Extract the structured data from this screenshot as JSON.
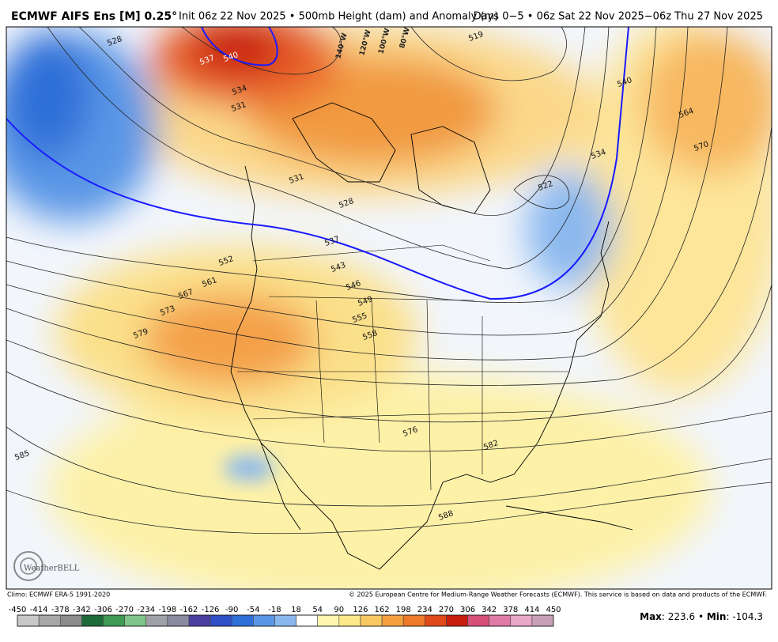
{
  "header": {
    "model": "ECMWF AIFS Ens [M] 0.25°",
    "init": "Init 06z 22 Nov 2025 • 500mb Height (dam) and Anomaly (m)",
    "range": "Days 0−5 • 06z Sat 22 Nov 2025−06z Thu 27 Nov 2025"
  },
  "map": {
    "contour_labels": [
      "528",
      "537",
      "540",
      "534",
      "531",
      "519",
      "540",
      "564",
      "570",
      "534",
      "522",
      "531",
      "528",
      "537",
      "543",
      "546",
      "549",
      "552",
      "555",
      "558",
      "561",
      "567",
      "573",
      "579",
      "576",
      "582",
      "585",
      "588"
    ],
    "longitude_labels": [
      "140°W",
      "120°W",
      "100°W",
      "80°W"
    ],
    "logo": "WeatherBELL"
  },
  "footer": {
    "climo": "Climo: ECMWF ERA-5 1991-2020",
    "copyright": "© 2025 European Centre for Medium-Range Weather Forecasts (ECMWF). This service is based on data and products of the ECMWF."
  },
  "colorbar": {
    "ticks": [
      -450,
      -414,
      -378,
      -342,
      -306,
      -270,
      -234,
      -198,
      -162,
      -126,
      -90,
      -54,
      -18,
      18,
      54,
      90,
      126,
      162,
      198,
      234,
      270,
      306,
      342,
      378,
      414,
      450
    ],
    "colors": [
      "#c8c8c8",
      "#a8a8a8",
      "#8c8c8c",
      "#1e6b3a",
      "#3f9a56",
      "#7fc48a",
      "#a0a0a8",
      "#8a8aa0",
      "#4a3fa0",
      "#3050c8",
      "#2f6fd8",
      "#5a96e6",
      "#8ab8ee",
      "#ffffff",
      "#fff6b0",
      "#fce98a",
      "#f9c860",
      "#f5a040",
      "#ef7a2a",
      "#e04a1a",
      "#c81e10",
      "#d8507a",
      "#e07aa6",
      "#e8a6c8",
      "#c8a0b8"
    ]
  },
  "stats": {
    "max_label": "Max",
    "max": 223.6,
    "min_label": "Min",
    "min": -104.3
  }
}
